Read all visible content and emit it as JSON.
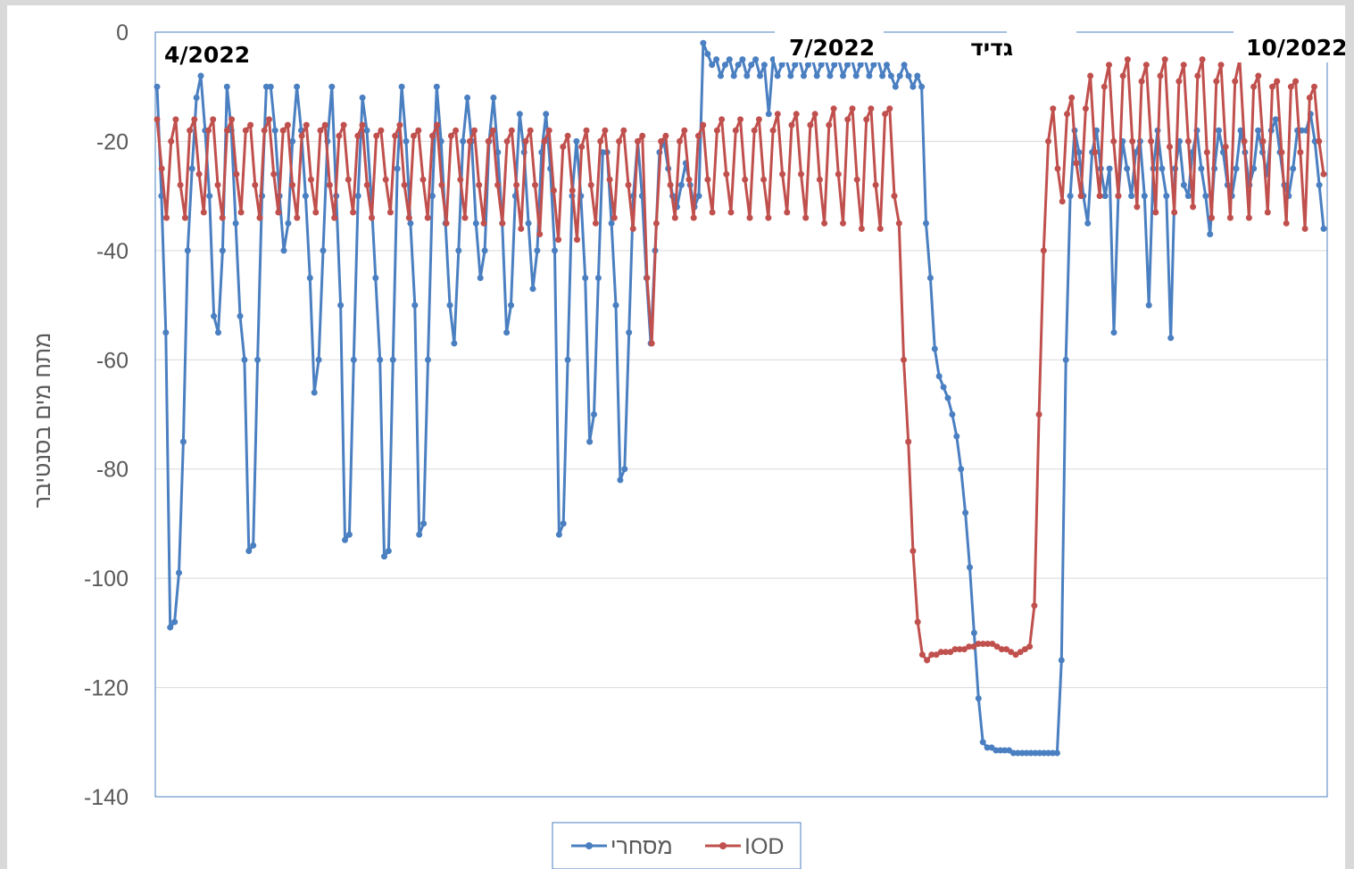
{
  "chart_data": {
    "type": "line",
    "title": "",
    "xlabel": "",
    "ylabel": "מתח מים בסנטיבר",
    "ylim": [
      -140,
      0
    ],
    "yticks": [
      0,
      -20,
      -40,
      -60,
      -80,
      -100,
      -120,
      -140
    ],
    "ytick_labels": [
      "0",
      "-20",
      "-40",
      "-60",
      "-80",
      "-100",
      "-120",
      "-140"
    ],
    "grid": "horizontal",
    "legend_position": "bottom",
    "annotations": [
      "4/2022",
      "7/2022",
      "גדיד",
      "10/2022"
    ],
    "series_order": [
      "מסחרי",
      "IOD"
    ],
    "series": [
      {
        "name": "מסחרי",
        "color": "#4a7fc1",
        "values": [
          -10,
          -30,
          -55,
          -109,
          -108,
          -99,
          -75,
          -40,
          -25,
          -12,
          -8,
          -18,
          -30,
          -52,
          -55,
          -40,
          -10,
          -18,
          -35,
          -52,
          -60,
          -95,
          -94,
          -60,
          -30,
          -10,
          -10,
          -18,
          -30,
          -40,
          -35,
          -20,
          -10,
          -18,
          -30,
          -45,
          -66,
          -60,
          -40,
          -20,
          -10,
          -30,
          -50,
          -93,
          -92,
          -60,
          -30,
          -12,
          -18,
          -30,
          -45,
          -60,
          -96,
          -95,
          -60,
          -25,
          -10,
          -20,
          -35,
          -50,
          -92,
          -90,
          -60,
          -30,
          -10,
          -20,
          -35,
          -50,
          -57,
          -40,
          -20,
          -12,
          -20,
          -35,
          -45,
          -40,
          -20,
          -12,
          -22,
          -35,
          -55,
          -50,
          -30,
          -15,
          -22,
          -35,
          -47,
          -40,
          -22,
          -15,
          -25,
          -40,
          -92,
          -90,
          -60,
          -30,
          -20,
          -30,
          -45,
          -75,
          -70,
          -45,
          -22,
          -22,
          -35,
          -50,
          -82,
          -80,
          -55,
          -30,
          -20,
          -30,
          -45,
          -57,
          -40,
          -22,
          -20,
          -25,
          -30,
          -32,
          -28,
          -24,
          -28,
          -32,
          -30,
          -2,
          -4,
          -6,
          -5,
          -8,
          -6,
          -5,
          -8,
          -6,
          -5,
          -8,
          -6,
          -5,
          -8,
          -6,
          -15,
          -5,
          -8,
          -6,
          -5,
          -8,
          -6,
          -5,
          -8,
          -6,
          -5,
          -8,
          -6,
          -5,
          -8,
          -6,
          -5,
          -8,
          -6,
          -5,
          -8,
          -6,
          -5,
          -8,
          -6,
          -5,
          -8,
          -6,
          -8,
          -10,
          -8,
          -6,
          -8,
          -10,
          -8,
          -10,
          -35,
          -45,
          -58,
          -63,
          -65,
          -67,
          -70,
          -74,
          -80,
          -88,
          -98,
          -110,
          -122,
          -130,
          -131,
          -131,
          -131.5,
          -131.5,
          -131.5,
          -131.5,
          -132,
          -132,
          -132,
          -132,
          -132,
          -132,
          -132,
          -132,
          -132,
          -132,
          -132,
          -115,
          -60,
          -30,
          -18,
          -22,
          -30,
          -35,
          -22,
          -18,
          -25,
          -30,
          -25,
          -55,
          -30,
          -20,
          -25,
          -30,
          -22,
          -20,
          -30,
          -50,
          -25,
          -18,
          -25,
          -30,
          -56,
          -25,
          -20,
          -28,
          -30,
          -22,
          -18,
          -25,
          -30,
          -37,
          -25,
          -18,
          -22,
          -28,
          -30,
          -25,
          -18,
          -22,
          -28,
          -25,
          -18,
          -22,
          -26,
          -18,
          -16,
          -22,
          -28,
          -30,
          -25,
          -18,
          -18,
          -18,
          -15,
          -20,
          -28,
          -36
        ]
      },
      {
        "name": "IOD",
        "color": "#c0504d",
        "values": [
          -16,
          -25,
          -34,
          -20,
          -16,
          -28,
          -34,
          -18,
          -16,
          -26,
          -33,
          -18,
          -16,
          -28,
          -34,
          -18,
          -16,
          -26,
          -33,
          -18,
          -17,
          -28,
          -34,
          -18,
          -16,
          -26,
          -33,
          -18,
          -17,
          -28,
          -34,
          -19,
          -17,
          -27,
          -33,
          -18,
          -17,
          -28,
          -34,
          -19,
          -17,
          -27,
          -33,
          -19,
          -17,
          -28,
          -34,
          -19,
          -18,
          -27,
          -33,
          -19,
          -17,
          -28,
          -34,
          -19,
          -18,
          -27,
          -34,
          -19,
          -17,
          -28,
          -35,
          -19,
          -18,
          -27,
          -34,
          -20,
          -18,
          -28,
          -35,
          -20,
          -18,
          -28,
          -35,
          -20,
          -18,
          -28,
          -36,
          -20,
          -18,
          -28,
          -37,
          -20,
          -18,
          -29,
          -38,
          -21,
          -19,
          -29,
          -38,
          -21,
          -18,
          -28,
          -35,
          -20,
          -18,
          -27,
          -34,
          -20,
          -18,
          -28,
          -36,
          -20,
          -19,
          -45,
          -57,
          -35,
          -20,
          -19,
          -28,
          -34,
          -20,
          -18,
          -27,
          -34,
          -19,
          -17,
          -27,
          -33,
          -18,
          -16,
          -26,
          -33,
          -18,
          -16,
          -27,
          -34,
          -18,
          -16,
          -27,
          -34,
          -18,
          -15,
          -26,
          -33,
          -17,
          -15,
          -26,
          -34,
          -17,
          -15,
          -27,
          -35,
          -17,
          -14,
          -26,
          -35,
          -16,
          -14,
          -27,
          -36,
          -16,
          -14,
          -28,
          -36,
          -15,
          -14,
          -30,
          -35,
          -60,
          -75,
          -95,
          -108,
          -114,
          -115,
          -114,
          -114,
          -113.5,
          -113.5,
          -113.5,
          -113,
          -113,
          -113,
          -112.5,
          -112.5,
          -112,
          -112,
          -112,
          -112,
          -112.5,
          -113,
          -113,
          -113.5,
          -114,
          -113.5,
          -113,
          -112.5,
          -105,
          -70,
          -40,
          -20,
          -14,
          -25,
          -31,
          -15,
          -12,
          -24,
          -30,
          -14,
          -8,
          -22,
          -30,
          -10,
          -6,
          -20,
          -30,
          -8,
          -5,
          -20,
          -32,
          -9,
          -6,
          -20,
          -33,
          -8,
          -5,
          -21,
          -33,
          -9,
          -6,
          -20,
          -32,
          -8,
          -5,
          -22,
          -34,
          -9,
          -6,
          -21,
          -34,
          -9,
          -5,
          -20,
          -34,
          -10,
          -8,
          -20,
          -33,
          -10,
          -9,
          -22,
          -35,
          -10,
          -9,
          -22,
          -36,
          -12,
          -10,
          -20,
          -26
        ]
      }
    ]
  }
}
